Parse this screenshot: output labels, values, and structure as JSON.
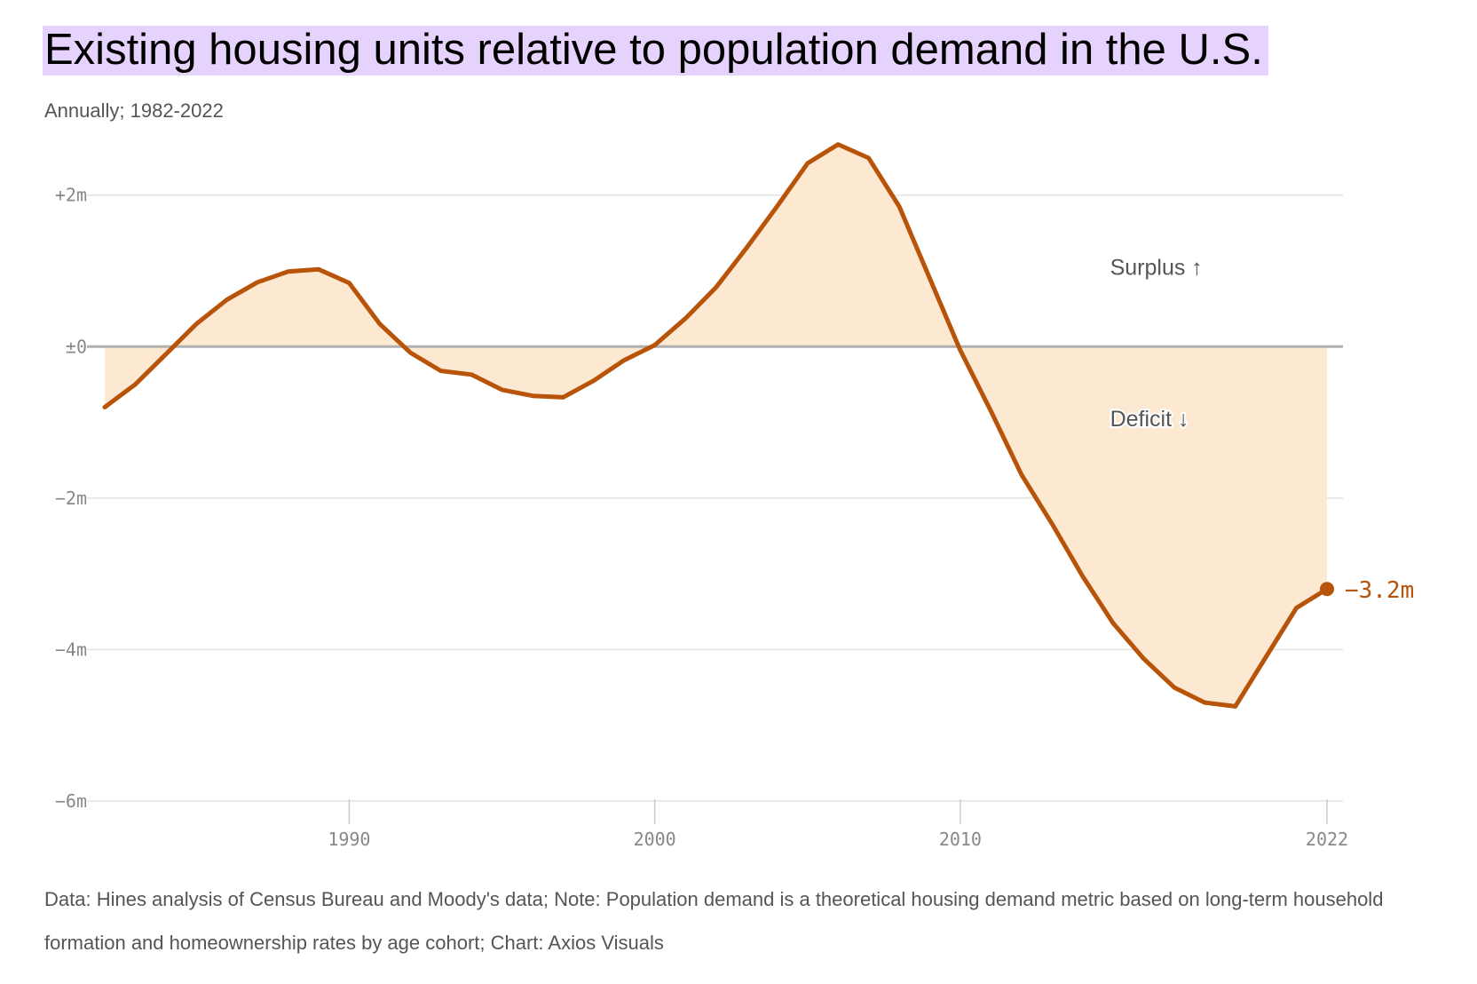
{
  "header": {
    "title": "Existing housing units relative to population demand in the U.S.",
    "subtitle": "Annually; 1982-2022"
  },
  "footer": {
    "note": "Data: Hines analysis of Census Bureau and Moody's data; Note: Population demand is a theoretical housing demand metric based on long-term household formation and homeownership rates by age cohort; Chart: Axios Visuals"
  },
  "annotations": {
    "surplus": "Surplus ↑",
    "deficit": "Deficit ↓",
    "end_value": "−3.2m"
  },
  "colors": {
    "line": "#b85409",
    "area": "#fde8d2",
    "zero_line": "#b0b0b0",
    "grid": "#e2e2e2",
    "title_highlight": "#e6d3fd"
  },
  "chart_data": {
    "type": "area",
    "title": "Existing housing units relative to population demand in the U.S.",
    "subtitle": "Annually; 1982-2022",
    "xlabel": "",
    "ylabel": "",
    "unit": "millions of housing units",
    "xlim": [
      1982,
      2022
    ],
    "ylim": [
      -6,
      2.7
    ],
    "x_ticks": [
      1990,
      2000,
      2010,
      2022
    ],
    "x_tick_labels": [
      "1990",
      "2000",
      "2010",
      "2022"
    ],
    "y_ticks": [
      2,
      0,
      -2,
      -4,
      -6
    ],
    "y_tick_labels": [
      "+2m",
      "±0",
      "−2m",
      "−4m",
      "−6m"
    ],
    "grid": true,
    "legend": "none",
    "x": [
      1982,
      1983,
      1984,
      1985,
      1986,
      1987,
      1988,
      1989,
      1990,
      1991,
      1992,
      1993,
      1994,
      1995,
      1996,
      1997,
      1998,
      1999,
      2000,
      2001,
      2002,
      2003,
      2004,
      2005,
      2006,
      2007,
      2008,
      2009,
      2010,
      2011,
      2012,
      2013,
      2014,
      2015,
      2016,
      2017,
      2018,
      2019,
      2020,
      2021,
      2022
    ],
    "series": [
      {
        "values": [
          -0.8,
          -0.5,
          -0.1,
          0.3,
          0.62,
          0.85,
          0.99,
          1.02,
          0.84,
          0.3,
          -0.08,
          -0.32,
          -0.37,
          -0.57,
          -0.65,
          -0.67,
          -0.45,
          -0.18,
          0.02,
          0.37,
          0.78,
          1.3,
          1.85,
          2.42,
          2.67,
          2.49,
          1.85,
          0.9,
          -0.05,
          -0.85,
          -1.69,
          -2.34,
          -3.03,
          -3.65,
          -4.12,
          -4.5,
          -4.7,
          -4.75,
          -4.1,
          -3.45,
          -3.2
        ]
      }
    ],
    "annotations": [
      "Surplus ↑",
      "Deficit ↓",
      "−3.2m"
    ]
  }
}
